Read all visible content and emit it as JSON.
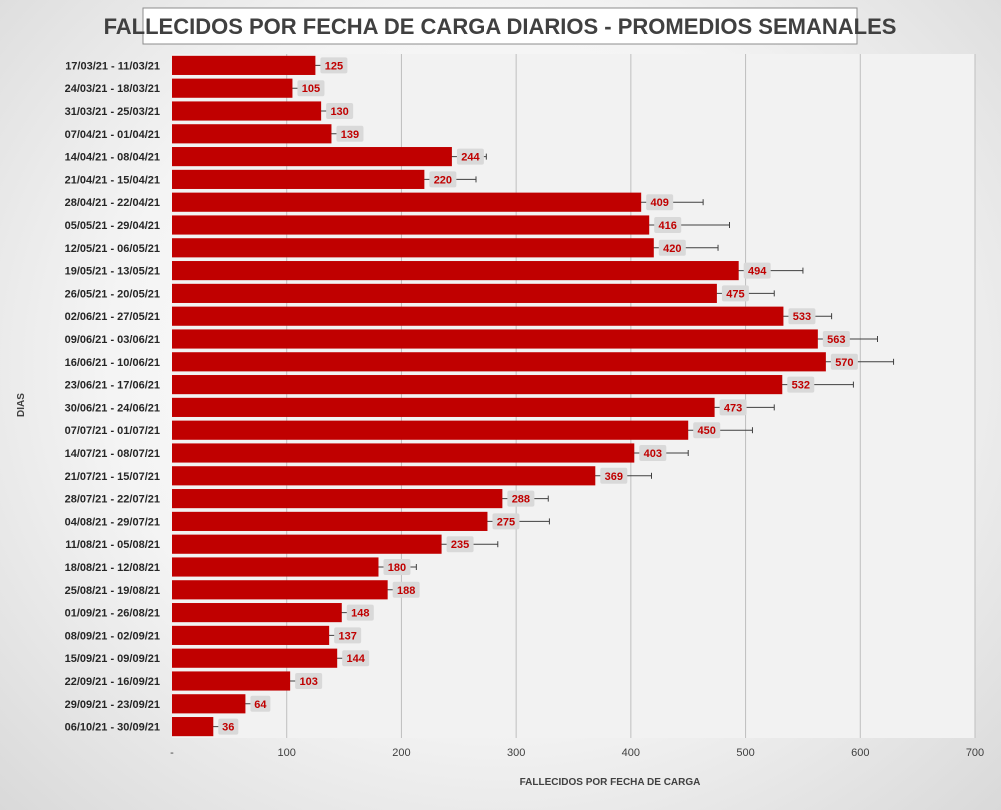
{
  "chart_data": {
    "type": "bar",
    "orientation": "horizontal",
    "title": "FALLECIDOS POR FECHA DE CARGA DIARIOS - PROMEDIOS SEMANALES",
    "xlabel": "FALLECIDOS POR FECHA DE CARGA",
    "ylabel": "DIAS",
    "xlim": [
      0,
      700
    ],
    "x_ticks": [
      "-",
      "100",
      "200",
      "300",
      "400",
      "500",
      "600",
      "700"
    ],
    "grid": true,
    "legend": "none",
    "bar_color": "#c00000",
    "categories": [
      "17/03/21 - 11/03/21",
      "24/03/21 - 18/03/21",
      "31/03/21 - 25/03/21",
      "07/04/21 - 01/04/21",
      "14/04/21 - 08/04/21",
      "21/04/21 - 15/04/21",
      "28/04/21 - 22/04/21",
      "05/05/21 - 29/04/21",
      "12/05/21 - 06/05/21",
      "19/05/21 - 13/05/21",
      "26/05/21 - 20/05/21",
      "02/06/21 - 27/05/21",
      "09/06/21 - 03/06/21",
      "16/06/21 - 10/06/21",
      "23/06/21 - 17/06/21",
      "30/06/21 - 24/06/21",
      "07/07/21 - 01/07/21",
      "14/07/21 - 08/07/21",
      "21/07/21 - 15/07/21",
      "28/07/21 - 22/07/21",
      "04/08/21 - 29/07/21",
      "11/08/21 - 05/08/21",
      "18/08/21 - 12/08/21",
      "25/08/21 - 19/08/21",
      "01/09/21 - 26/08/21",
      "08/09/21 - 02/09/21",
      "15/09/21 - 09/09/21",
      "22/09/21 - 16/09/21",
      "29/09/21 - 23/09/21",
      "06/10/21 - 30/09/21"
    ],
    "values": [
      125,
      105,
      130,
      139,
      244,
      220,
      409,
      416,
      420,
      494,
      475,
      533,
      563,
      570,
      532,
      473,
      450,
      403,
      369,
      288,
      275,
      235,
      180,
      188,
      148,
      137,
      144,
      103,
      64,
      36
    ],
    "error_low": [
      98,
      86,
      112,
      110,
      213,
      172,
      354,
      347,
      364,
      438,
      423,
      491,
      511,
      510,
      470,
      421,
      395,
      354,
      320,
      246,
      221,
      185,
      145,
      170,
      123,
      117,
      118,
      86,
      50,
      28
    ],
    "error_high": [
      150,
      124,
      148,
      166,
      274,
      265,
      463,
      486,
      476,
      550,
      525,
      575,
      615,
      629,
      594,
      525,
      506,
      450,
      418,
      328,
      329,
      284,
      213,
      208,
      174,
      158,
      168,
      117,
      78,
      42
    ]
  }
}
